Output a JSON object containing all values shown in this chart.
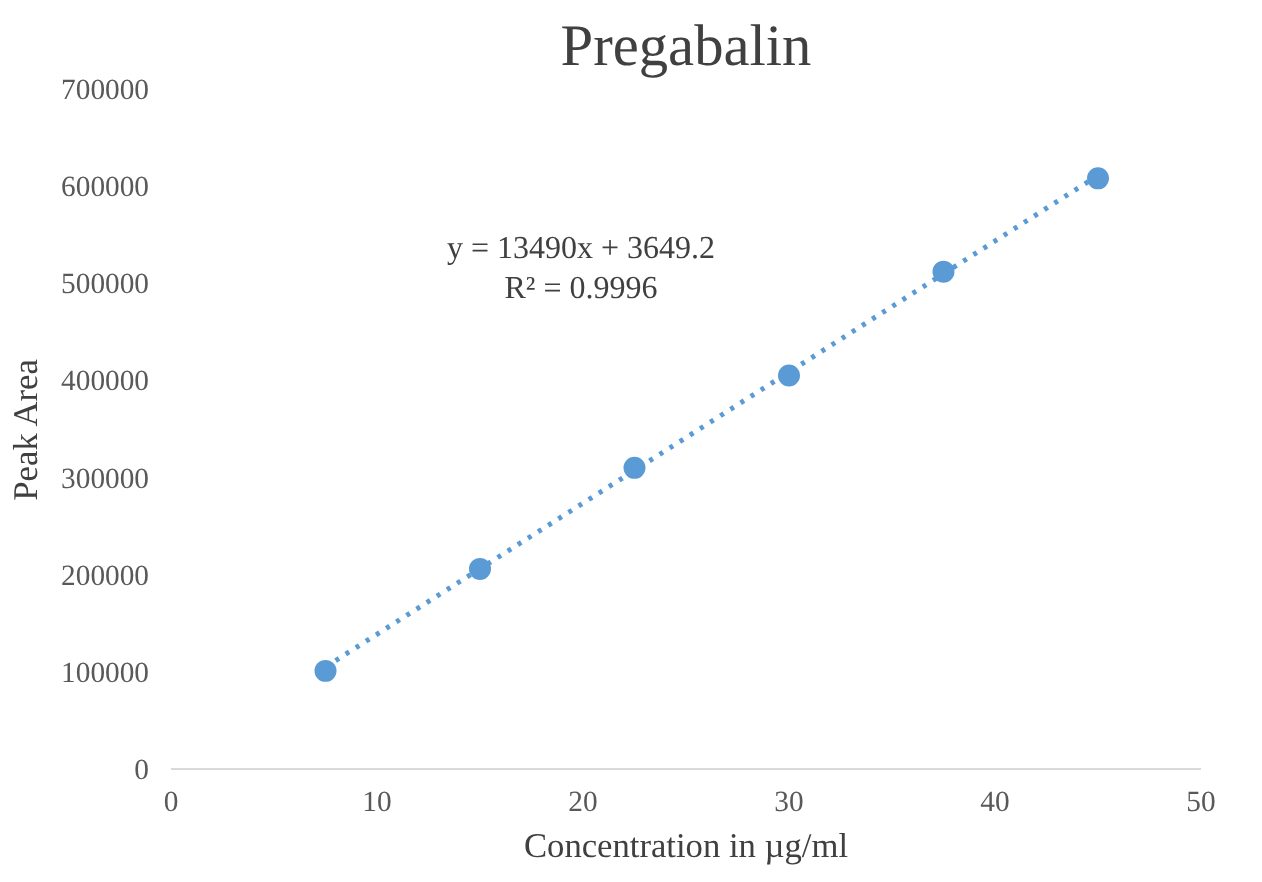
{
  "chart_data": {
    "type": "scatter",
    "title": "Pregabalin",
    "xlabel": "Concentration in µg/ml",
    "ylabel": "Peak Area",
    "x": [
      7.5,
      15,
      22.5,
      30,
      37.5,
      45
    ],
    "series": [
      {
        "color": "#5b9bd5",
        "marker": "circle",
        "values": [
          101000,
          206000,
          310000,
          405000,
          512000,
          608000
        ]
      },
      {
        "type": "line",
        "color": "#5b9bd5",
        "line_style": "dotted",
        "marker": "none",
        "x": [
          7.5,
          45
        ],
        "values": [
          105000,
          611000
        ]
      }
    ],
    "xlim": [
      0,
      50
    ],
    "xticks": [
      0,
      10,
      20,
      30,
      40,
      50
    ],
    "ylim": [
      0,
      700000
    ],
    "yticks": [
      0,
      100000,
      200000,
      300000,
      400000,
      500000,
      600000,
      700000
    ],
    "annotations": [
      "y = 13490x + 3649.2\nR² = 0.9996"
    ],
    "grid": false
  }
}
